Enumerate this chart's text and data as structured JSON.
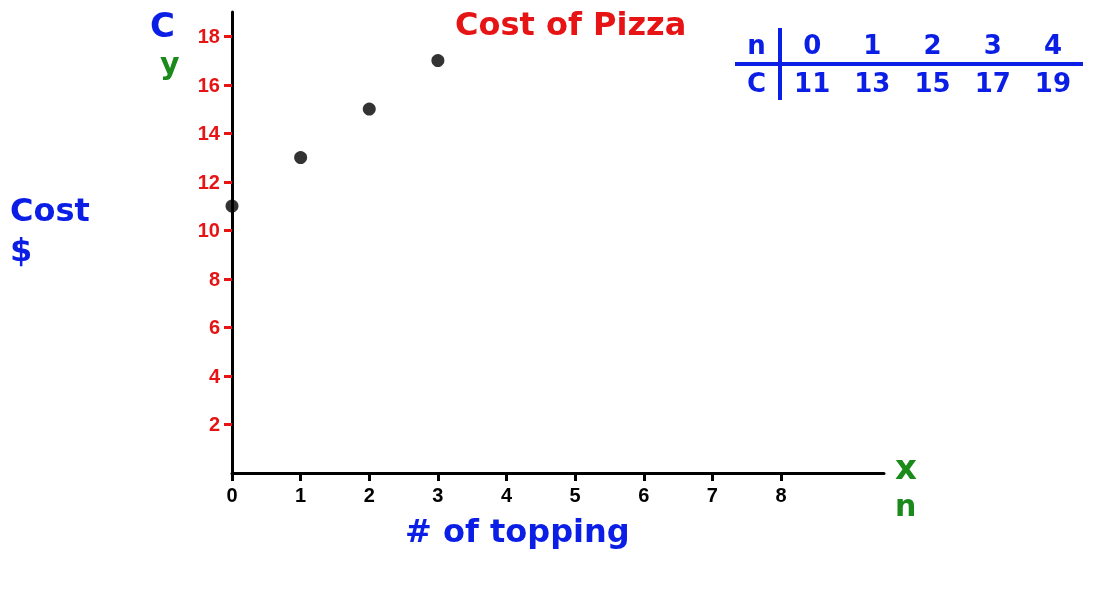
{
  "chart_data": {
    "type": "scatter",
    "title": "Cost of Pizza",
    "xlabel": "# of topping",
    "ylabel": "Cost $",
    "x": [
      0,
      1,
      2,
      3
    ],
    "values": [
      11,
      13,
      15,
      17
    ],
    "color": "#000000",
    "marker": "circle",
    "xlim": [
      0,
      9.5
    ],
    "ylim": [
      0,
      19
    ],
    "xticks": [
      0,
      1,
      2,
      3,
      4,
      5,
      6,
      7,
      8
    ],
    "yticks": [
      2,
      4,
      6,
      8,
      10,
      12,
      14,
      16,
      18
    ],
    "annotations": [
      "C",
      "y",
      "x",
      "n",
      "n",
      "0",
      "1",
      "2",
      "3",
      "4",
      "C",
      "11",
      "13",
      "15",
      "17",
      "19"
    ]
  }
}
